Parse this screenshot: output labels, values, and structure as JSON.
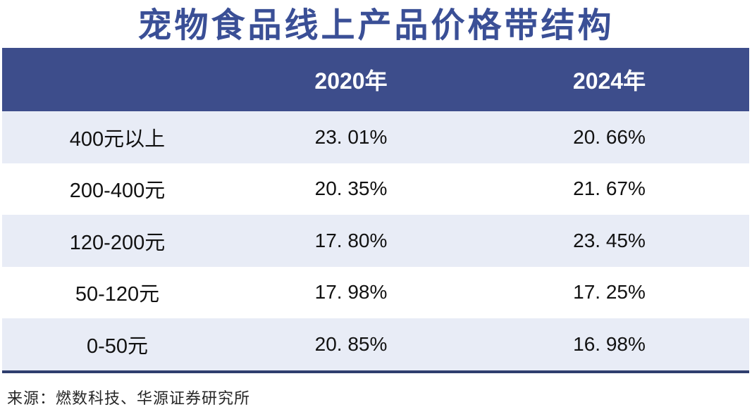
{
  "title": "宠物食品线上产品价格带结构",
  "table": {
    "columns": [
      "",
      "2020年",
      "2024年"
    ],
    "rows": [
      {
        "label": "400元以上",
        "v2020": "23. 01%",
        "v2024": "20. 66%"
      },
      {
        "label": "200-400元",
        "v2020": "20. 35%",
        "v2024": "21. 67%"
      },
      {
        "label": "120-200元",
        "v2020": "17. 80%",
        "v2024": "23. 45%"
      },
      {
        "label": "50-120元",
        "v2020": "17. 98%",
        "v2024": "17. 25%"
      },
      {
        "label": "0-50元",
        "v2020": "20. 85%",
        "v2024": "16. 98%"
      }
    ]
  },
  "source": "来源：燃数科技、华源证券研究所",
  "colors": {
    "title_text": "#3A4F96",
    "header_bg": "#3D4D8B",
    "header_text": "#FFFFFF",
    "row_alt_bg": "#E8ECF6",
    "row_bg": "#FFFFFF",
    "bottom_border": "#2F3E6E",
    "body_text": "#121212"
  },
  "chart_data": {
    "type": "table",
    "title": "宠物食品线上产品价格带结构",
    "categories": [
      "400元以上",
      "200-400元",
      "120-200元",
      "50-120元",
      "0-50元"
    ],
    "series": [
      {
        "name": "2020年",
        "values": [
          23.01,
          20.35,
          17.8,
          17.98,
          20.85
        ]
      },
      {
        "name": "2024年",
        "values": [
          20.66,
          21.67,
          23.45,
          17.25,
          16.98
        ]
      }
    ],
    "value_unit": "%",
    "legend_position": "header-row",
    "source": "来源：燃数科技、华源证券研究所"
  }
}
